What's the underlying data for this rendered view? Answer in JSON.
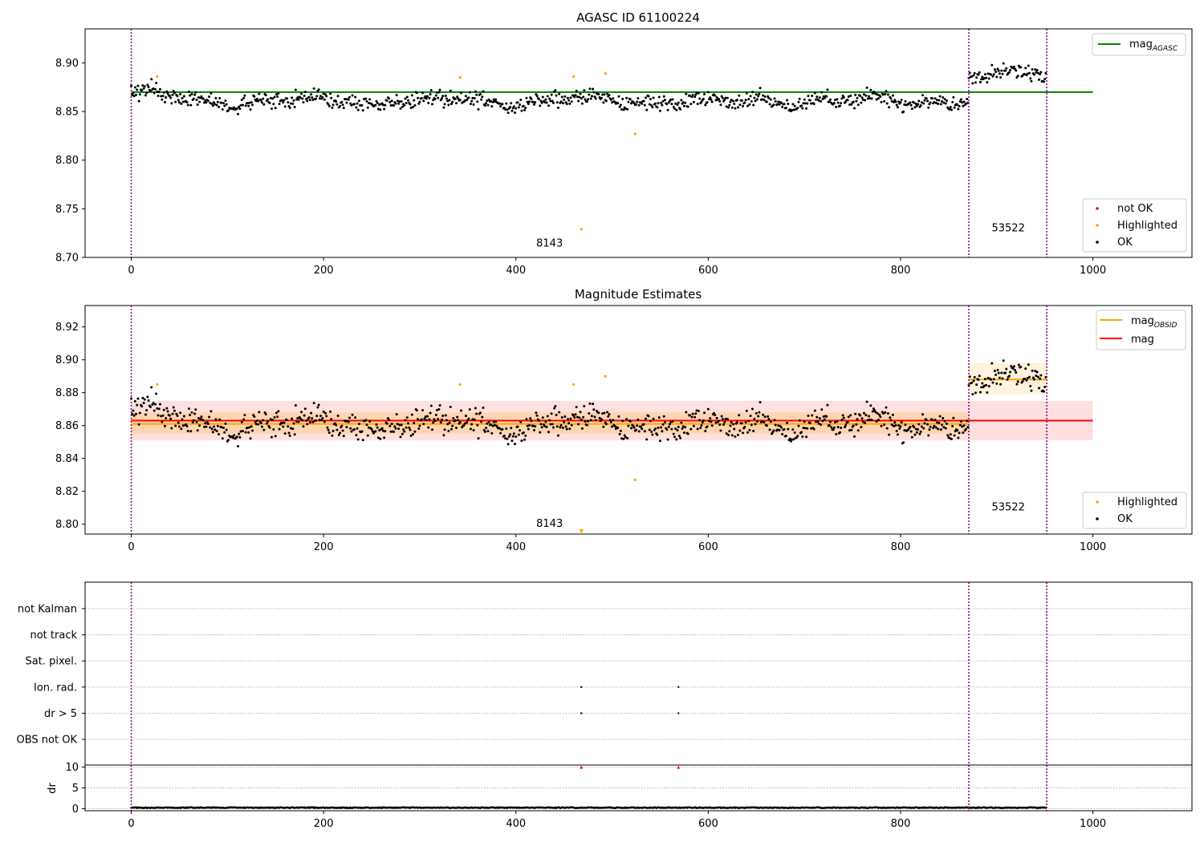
{
  "chart_data": [
    {
      "type": "scatter",
      "title": "AGASC ID 61100224",
      "xlim": [
        -48,
        1103
      ],
      "ylim": [
        8.7,
        8.935
      ],
      "xticks": [
        0,
        200,
        400,
        600,
        800,
        1000
      ],
      "yticks": [
        8.7,
        8.75,
        8.8,
        8.85,
        8.9
      ],
      "ytick_labels": [
        "8.70",
        "8.75",
        "8.80",
        "8.85",
        "8.90"
      ],
      "obs_boundaries": [
        0,
        871,
        952
      ],
      "obsid_labels": [
        {
          "text": "8143",
          "x": 435,
          "y": 8.711
        },
        {
          "text": "53522",
          "x": 912,
          "y": 8.727
        }
      ],
      "lines": [
        {
          "name": "mag_AGASC",
          "color": "#008000",
          "x": [
            0,
            1000
          ],
          "y": [
            8.87,
            8.87
          ]
        }
      ],
      "highlighted": {
        "x": [
          27,
          342,
          460,
          468,
          493,
          524
        ],
        "y": [
          8.886,
          8.885,
          8.886,
          8.729,
          8.889,
          8.827
        ]
      },
      "legend_top": {
        "label": "mag",
        "sub": "AGASC",
        "position": "upper right"
      },
      "legend_bottom": {
        "position": "lower right",
        "items": [
          {
            "label": "not OK",
            "color": "#ff0000"
          },
          {
            "label": "Highlighted",
            "color": "#ffa500"
          },
          {
            "label": "OK",
            "color": "#000000"
          }
        ]
      }
    },
    {
      "type": "scatter",
      "title": "Magnitude Estimates",
      "xlim": [
        -48,
        1103
      ],
      "ylim": [
        8.794,
        8.933
      ],
      "xticks": [
        0,
        200,
        400,
        600,
        800,
        1000
      ],
      "yticks": [
        8.8,
        8.82,
        8.84,
        8.86,
        8.88,
        8.9,
        8.92
      ],
      "ytick_labels": [
        "8.80",
        "8.82",
        "8.84",
        "8.86",
        "8.88",
        "8.90",
        "8.92"
      ],
      "obs_boundaries": [
        0,
        871,
        952
      ],
      "obsid_labels": [
        {
          "text": "8143",
          "x": 435,
          "y": 8.7985
        },
        {
          "text": "53522",
          "x": 912,
          "y": 8.8085
        }
      ],
      "bands": [
        {
          "x": [
            0,
            1000
          ],
          "y": [
            8.851,
            8.875
          ],
          "color": "#ff9999",
          "opacity": 0.3
        },
        {
          "x": [
            0,
            871
          ],
          "y": [
            8.855,
            8.868
          ],
          "color": "#ffc05a",
          "opacity": 0.35
        },
        {
          "x": [
            871,
            952
          ],
          "y": [
            8.879,
            8.898
          ],
          "color": "#ffc05a",
          "opacity": 0.2
        }
      ],
      "lines": [
        {
          "name": "mag_OBSID",
          "color": "#ffa500",
          "x": [
            0,
            871
          ],
          "y": [
            8.861,
            8.861
          ]
        },
        {
          "name": "mag_OBSID",
          "color": "#ffa500",
          "x": [
            871,
            952
          ],
          "y": [
            8.888,
            8.888
          ]
        },
        {
          "name": "mag",
          "color": "#ff0000",
          "x": [
            0,
            1000
          ],
          "y": [
            8.863,
            8.863
          ]
        }
      ],
      "highlighted": {
        "x": [
          27,
          342,
          460,
          493,
          524
        ],
        "y": [
          8.885,
          8.885,
          8.885,
          8.89,
          8.827
        ]
      },
      "offscale_marker": {
        "x": 468,
        "y": 8.7955,
        "color": "#ffa500"
      },
      "legend_top": {
        "position": "upper right",
        "items": [
          {
            "label": "mag",
            "sub": "OBSID",
            "color": "#ffa500"
          },
          {
            "label": "mag",
            "sub": "",
            "color": "#ff0000"
          }
        ]
      },
      "legend_bottom": {
        "position": "lower right",
        "items": [
          {
            "label": "Highlighted",
            "color": "#ffa500"
          },
          {
            "label": "OK",
            "color": "#000000"
          }
        ]
      }
    },
    {
      "type": "scatter",
      "title": "",
      "xlim": [
        -48,
        1103
      ],
      "flag_labels": [
        "not Kalman",
        "not track",
        "Sat. pixel.",
        "Ion. rad.",
        "dr > 5",
        "OBS not OK"
      ],
      "flag_points": [
        {
          "flag": "Ion. rad.",
          "x": [
            468,
            569
          ]
        },
        {
          "flag": "dr > 5",
          "x": [
            468,
            569
          ]
        }
      ],
      "obs_boundaries": [
        0,
        871,
        952
      ]
    },
    {
      "type": "scatter",
      "title": "",
      "ylabel": "dr",
      "xlim": [
        -48,
        1103
      ],
      "ylim": [
        -0.5,
        10.5
      ],
      "xticks": [
        0,
        200,
        400,
        600,
        800,
        1000
      ],
      "yticks": [
        0,
        5,
        10
      ],
      "ytick_labels": [
        "0",
        "5",
        "10"
      ],
      "outliers": {
        "x": [
          468,
          569
        ],
        "y": [
          10,
          10
        ],
        "color": "#ff0000"
      },
      "obs_boundaries": [
        0,
        871,
        952
      ]
    }
  ]
}
